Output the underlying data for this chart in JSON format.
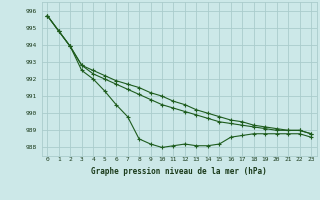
{
  "title": "Graphe pression niveau de la mer (hPa)",
  "background_color": "#cce8e8",
  "grid_color": "#aacccc",
  "line_color": "#1e5c1e",
  "x_labels": [
    "0",
    "1",
    "2",
    "3",
    "4",
    "5",
    "6",
    "7",
    "8",
    "9",
    "10",
    "11",
    "12",
    "13",
    "14",
    "15",
    "16",
    "17",
    "18",
    "19",
    "20",
    "21",
    "22",
    "23"
  ],
  "ylim": [
    987.5,
    996.5
  ],
  "yticks": [
    988,
    989,
    990,
    991,
    992,
    993,
    994,
    995,
    996
  ],
  "line1": [
    995.7,
    994.8,
    993.9,
    992.5,
    992.0,
    991.3,
    990.5,
    989.8,
    988.5,
    988.2,
    988.0,
    988.1,
    988.2,
    988.1,
    988.1,
    988.2,
    988.6,
    988.7,
    988.8,
    988.8,
    988.8,
    988.8,
    988.8,
    988.6
  ],
  "line2": [
    995.7,
    994.8,
    993.9,
    992.8,
    992.3,
    992.0,
    991.7,
    991.4,
    991.1,
    990.8,
    990.5,
    990.3,
    990.1,
    989.9,
    989.7,
    989.5,
    989.4,
    989.3,
    989.2,
    989.1,
    989.0,
    989.0,
    989.0,
    988.8
  ],
  "line3": [
    995.7,
    994.8,
    993.9,
    992.8,
    992.5,
    992.2,
    991.9,
    991.7,
    991.5,
    991.2,
    991.0,
    990.7,
    990.5,
    990.2,
    990.0,
    989.8,
    989.6,
    989.5,
    989.3,
    989.2,
    989.1,
    989.0,
    989.0,
    988.8
  ]
}
